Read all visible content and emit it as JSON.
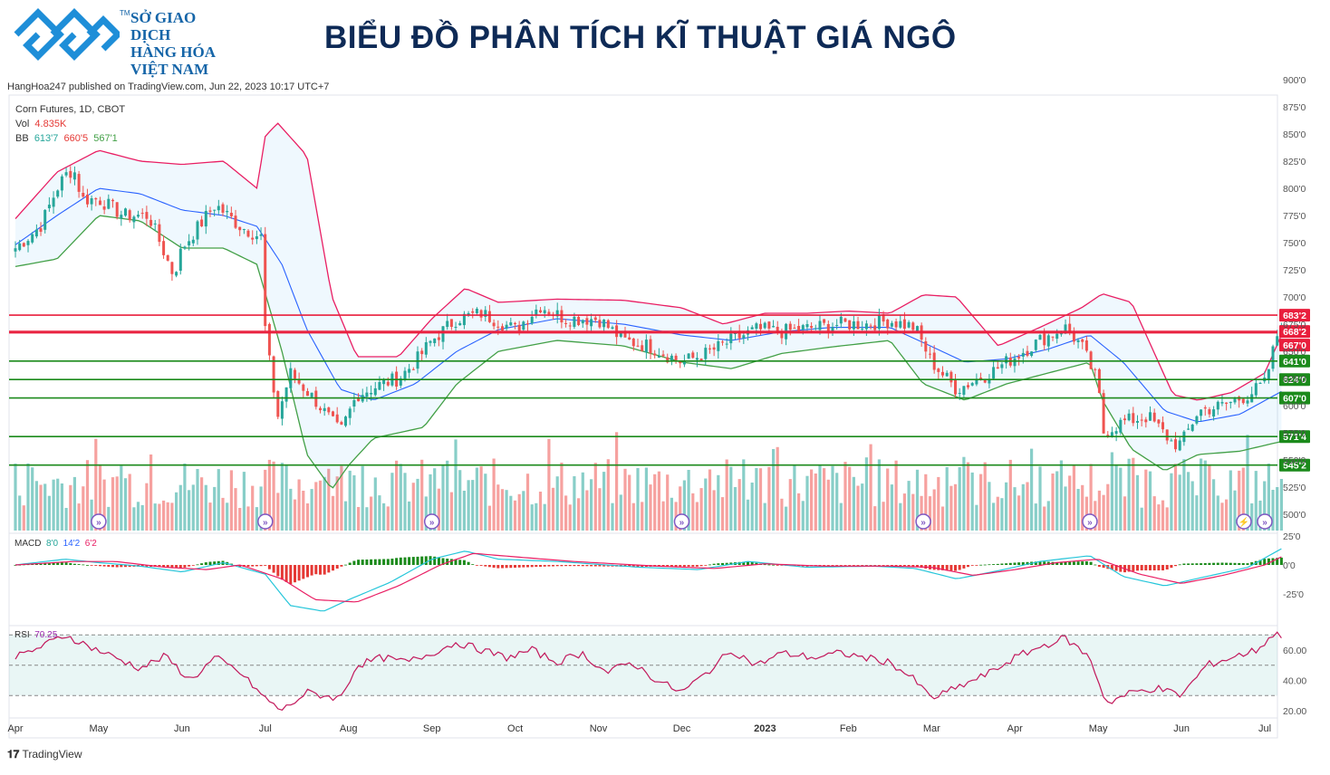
{
  "header": {
    "logo_tm": "TM",
    "logo_lines": [
      "SỞ GIAO DỊCH",
      "HÀNG HÓA",
      "VIỆT NAM"
    ],
    "title": "BIỂU ĐỒ PHÂN TÍCH KĨ THUẬT GIÁ NGÔ"
  },
  "published": "HangHoa247 published on TradingView.com, Jun 22, 2023 10:17 UTC+7",
  "legend": {
    "symbol": "Corn Futures, 1D, CBOT",
    "vol_label": "Vol",
    "vol_value": "4.835K",
    "bb_label": "BB",
    "bb_basis": "613'7",
    "bb_upper": "660'5",
    "bb_lower": "567'1"
  },
  "macd_legend": {
    "label": "MACD",
    "v1": "8'0",
    "v2": "14'2",
    "v3": "6'2"
  },
  "rsi_legend": {
    "label": "RSI",
    "value": "70.25"
  },
  "footer": {
    "brand": "TradingView"
  },
  "colors": {
    "up": "#26a69a",
    "down": "#ef5350",
    "bb_upper": "#e91e63",
    "bb_basis": "#2962ff",
    "bb_lower": "#43a047",
    "resistance": "#e91e3c",
    "support": "#1b8a1b"
  },
  "chart_data": {
    "type": "candlestick",
    "symbol": "Corn Futures, 1D, CBOT",
    "x_ticks": [
      "Apr",
      "May",
      "Jun",
      "Jul",
      "Aug",
      "Sep",
      "Oct",
      "Nov",
      "Dec",
      "2023",
      "Feb",
      "Mar",
      "Apr",
      "May",
      "Jun",
      "Jul"
    ],
    "y_ticks": [
      "900'0",
      "875'0",
      "850'0",
      "825'0",
      "800'0",
      "775'0",
      "750'0",
      "725'0",
      "700'0",
      "675'0",
      "650'0",
      "625'0",
      "600'0",
      "575'0",
      "550'0",
      "525'0",
      "500'0"
    ],
    "ylim": [
      500,
      900
    ],
    "price_close_path": [
      [
        0,
        745
      ],
      [
        0.3,
        765
      ],
      [
        0.5,
        800
      ],
      [
        0.6,
        812
      ],
      [
        0.7,
        818
      ],
      [
        0.8,
        790
      ],
      [
        1.0,
        790
      ],
      [
        1.3,
        775
      ],
      [
        1.6,
        775
      ],
      [
        1.9,
        720
      ],
      [
        2.0,
        745
      ],
      [
        2.4,
        785
      ],
      [
        2.7,
        765
      ],
      [
        2.95,
        755
      ],
      [
        3.0,
        670
      ],
      [
        3.05,
        640
      ],
      [
        3.15,
        590
      ],
      [
        3.3,
        630
      ],
      [
        3.6,
        605
      ],
      [
        3.9,
        575
      ],
      [
        4.1,
        610
      ],
      [
        4.4,
        620
      ],
      [
        4.6,
        625
      ],
      [
        4.8,
        640
      ],
      [
        5.0,
        660
      ],
      [
        5.3,
        680
      ],
      [
        5.6,
        685
      ],
      [
        6.0,
        670
      ],
      [
        6.3,
        692
      ],
      [
        6.6,
        680
      ],
      [
        7.0,
        680
      ],
      [
        7.3,
        660
      ],
      [
        7.6,
        655
      ],
      [
        8.0,
        640
      ],
      [
        8.3,
        648
      ],
      [
        8.6,
        660
      ],
      [
        8.9,
        670
      ],
      [
        9.2,
        668
      ],
      [
        9.6,
        672
      ],
      [
        9.9,
        675
      ],
      [
        10.2,
        675
      ],
      [
        10.5,
        678
      ],
      [
        10.8,
        672
      ],
      [
        11.0,
        640
      ],
      [
        11.3,
        615
      ],
      [
        11.7,
        630
      ],
      [
        12.0,
        645
      ],
      [
        12.3,
        660
      ],
      [
        12.6,
        672
      ],
      [
        12.8,
        655
      ],
      [
        13.0,
        620
      ],
      [
        13.05,
        575
      ],
      [
        13.3,
        585
      ],
      [
        13.6,
        590
      ],
      [
        13.9,
        565
      ],
      [
        14.0,
        565
      ],
      [
        14.2,
        595
      ],
      [
        14.5,
        600
      ],
      [
        14.8,
        610
      ],
      [
        15.0,
        620
      ],
      [
        15.2,
        680
      ]
    ],
    "bb_upper_path": [
      [
        0,
        772
      ],
      [
        0.5,
        815
      ],
      [
        1.0,
        835
      ],
      [
        1.5,
        825
      ],
      [
        2.0,
        822
      ],
      [
        2.5,
        825
      ],
      [
        2.9,
        800
      ],
      [
        3.0,
        848
      ],
      [
        3.15,
        860
      ],
      [
        3.5,
        830
      ],
      [
        3.8,
        700
      ],
      [
        4.1,
        645
      ],
      [
        4.6,
        645
      ],
      [
        5.0,
        680
      ],
      [
        5.4,
        708
      ],
      [
        5.8,
        695
      ],
      [
        6.5,
        698
      ],
      [
        7.3,
        697
      ],
      [
        8.0,
        690
      ],
      [
        8.5,
        675
      ],
      [
        9.0,
        685
      ],
      [
        9.5,
        685
      ],
      [
        10.0,
        687
      ],
      [
        10.5,
        685
      ],
      [
        10.9,
        702
      ],
      [
        11.3,
        700
      ],
      [
        11.8,
        655
      ],
      [
        12.3,
        672
      ],
      [
        12.8,
        690
      ],
      [
        13.05,
        703
      ],
      [
        13.4,
        695
      ],
      [
        13.9,
        610
      ],
      [
        14.2,
        605
      ],
      [
        14.6,
        612
      ],
      [
        15.0,
        630
      ],
      [
        15.2,
        665
      ]
    ],
    "bb_basis_path": [
      [
        0,
        748
      ],
      [
        0.5,
        775
      ],
      [
        1.0,
        800
      ],
      [
        1.5,
        795
      ],
      [
        2.0,
        780
      ],
      [
        2.5,
        775
      ],
      [
        2.9,
        765
      ],
      [
        3.2,
        730
      ],
      [
        3.5,
        670
      ],
      [
        3.9,
        615
      ],
      [
        4.3,
        605
      ],
      [
        4.8,
        620
      ],
      [
        5.3,
        650
      ],
      [
        5.8,
        670
      ],
      [
        6.5,
        680
      ],
      [
        7.3,
        675
      ],
      [
        8.0,
        665
      ],
      [
        8.6,
        660
      ],
      [
        9.2,
        668
      ],
      [
        9.8,
        672
      ],
      [
        10.5,
        672
      ],
      [
        10.9,
        658
      ],
      [
        11.4,
        640
      ],
      [
        11.9,
        643
      ],
      [
        12.4,
        652
      ],
      [
        12.9,
        665
      ],
      [
        13.3,
        640
      ],
      [
        13.8,
        595
      ],
      [
        14.2,
        585
      ],
      [
        14.7,
        592
      ],
      [
        15.2,
        613
      ]
    ],
    "bb_lower_path": [
      [
        0,
        728
      ],
      [
        0.5,
        735
      ],
      [
        1.0,
        775
      ],
      [
        1.5,
        770
      ],
      [
        2.0,
        745
      ],
      [
        2.5,
        745
      ],
      [
        2.9,
        730
      ],
      [
        3.2,
        650
      ],
      [
        3.5,
        555
      ],
      [
        3.8,
        523
      ],
      [
        4.0,
        545
      ],
      [
        4.3,
        570
      ],
      [
        4.9,
        580
      ],
      [
        5.3,
        620
      ],
      [
        5.8,
        650
      ],
      [
        6.5,
        660
      ],
      [
        7.3,
        655
      ],
      [
        8.0,
        640
      ],
      [
        8.6,
        634
      ],
      [
        9.2,
        648
      ],
      [
        9.8,
        654
      ],
      [
        10.5,
        660
      ],
      [
        10.9,
        620
      ],
      [
        11.4,
        605
      ],
      [
        11.9,
        620
      ],
      [
        12.4,
        630
      ],
      [
        12.9,
        640
      ],
      [
        13.05,
        605
      ],
      [
        13.4,
        560
      ],
      [
        13.8,
        540
      ],
      [
        14.2,
        555
      ],
      [
        14.7,
        558
      ],
      [
        15.2,
        567
      ]
    ],
    "horizontal_levels": [
      {
        "value": 683.25,
        "label": "683'2",
        "kind": "resistance"
      },
      {
        "value": 668.25,
        "label": "668'2",
        "kind": "resistance"
      },
      {
        "value": 667.0,
        "label": "667'0",
        "kind": "resistance"
      },
      {
        "value": 641.0,
        "label": "641'0",
        "kind": "support"
      },
      {
        "value": 624.0,
        "label": "624'0",
        "kind": "support"
      },
      {
        "value": 607.0,
        "label": "607'0",
        "kind": "support"
      },
      {
        "value": 571.5,
        "label": "571'4",
        "kind": "support"
      },
      {
        "value": 545.25,
        "label": "545'2",
        "kind": "support"
      }
    ],
    "macd": {
      "y_ticks": [
        "25'0",
        "0'0",
        "-25'0"
      ],
      "ylim": [
        -45,
        30
      ],
      "macd_path": [
        [
          0,
          0
        ],
        [
          0.6,
          5
        ],
        [
          1.0,
          2
        ],
        [
          1.5,
          -1
        ],
        [
          2.0,
          -6
        ],
        [
          2.5,
          2
        ],
        [
          3.0,
          -8
        ],
        [
          3.3,
          -35
        ],
        [
          3.7,
          -40
        ],
        [
          4.0,
          -30
        ],
        [
          4.5,
          -15
        ],
        [
          5.0,
          5
        ],
        [
          5.4,
          12
        ],
        [
          5.8,
          5
        ],
        [
          6.5,
          3
        ],
        [
          7.5,
          -2
        ],
        [
          8.2,
          -4
        ],
        [
          8.8,
          3
        ],
        [
          9.5,
          -2
        ],
        [
          10.3,
          -1
        ],
        [
          10.8,
          -3
        ],
        [
          11.3,
          -12
        ],
        [
          11.8,
          -5
        ],
        [
          12.3,
          3
        ],
        [
          12.9,
          8
        ],
        [
          13.3,
          -10
        ],
        [
          13.8,
          -18
        ],
        [
          14.3,
          -10
        ],
        [
          14.8,
          -2
        ],
        [
          15.2,
          14
        ]
      ],
      "signal_path": [
        [
          0,
          0
        ],
        [
          0.7,
          3
        ],
        [
          1.2,
          3
        ],
        [
          1.8,
          -2
        ],
        [
          2.3,
          -4
        ],
        [
          2.7,
          0
        ],
        [
          3.2,
          -12
        ],
        [
          3.6,
          -30
        ],
        [
          4.1,
          -32
        ],
        [
          4.6,
          -18
        ],
        [
          5.1,
          0
        ],
        [
          5.5,
          10
        ],
        [
          6.0,
          7
        ],
        [
          6.7,
          3
        ],
        [
          7.7,
          -1
        ],
        [
          8.4,
          -3
        ],
        [
          9.0,
          1
        ],
        [
          9.7,
          -1
        ],
        [
          10.5,
          -1
        ],
        [
          11.0,
          -2
        ],
        [
          11.5,
          -9
        ],
        [
          12.0,
          -4
        ],
        [
          12.5,
          2
        ],
        [
          13.0,
          5
        ],
        [
          13.5,
          -8
        ],
        [
          14.0,
          -16
        ],
        [
          14.5,
          -9
        ],
        [
          15.0,
          0
        ],
        [
          15.2,
          7
        ]
      ],
      "histogram_sign_path": [
        [
          0,
          1
        ],
        [
          1.0,
          1
        ],
        [
          1.6,
          -1
        ],
        [
          2.3,
          -1
        ],
        [
          2.5,
          1
        ],
        [
          2.9,
          1
        ],
        [
          3.0,
          -1
        ],
        [
          3.8,
          -1
        ],
        [
          3.9,
          1
        ],
        [
          5.6,
          1
        ],
        [
          5.7,
          -1
        ],
        [
          8.5,
          -1
        ],
        [
          8.6,
          1
        ],
        [
          9.4,
          1
        ],
        [
          9.5,
          -1
        ],
        [
          11.2,
          -1
        ],
        [
          11.3,
          1
        ],
        [
          12.9,
          1
        ],
        [
          13.0,
          -1
        ],
        [
          13.9,
          -1
        ],
        [
          14.0,
          1
        ],
        [
          15.2,
          1
        ]
      ]
    },
    "rsi": {
      "y_ticks": [
        "60.00",
        "40.00",
        "20.00"
      ],
      "ylim": [
        15,
        75
      ],
      "band": [
        30,
        70
      ],
      "midline": 50,
      "rsi_path": [
        [
          0,
          55
        ],
        [
          0.3,
          62
        ],
        [
          0.6,
          70
        ],
        [
          0.9,
          62
        ],
        [
          1.2,
          55
        ],
        [
          1.5,
          48
        ],
        [
          1.8,
          56
        ],
        [
          2.1,
          40
        ],
        [
          2.4,
          55
        ],
        [
          2.7,
          45
        ],
        [
          3.0,
          28
        ],
        [
          3.2,
          20
        ],
        [
          3.5,
          32
        ],
        [
          3.9,
          28
        ],
        [
          4.1,
          50
        ],
        [
          4.4,
          55
        ],
        [
          4.7,
          52
        ],
        [
          5.0,
          58
        ],
        [
          5.3,
          65
        ],
        [
          5.6,
          60
        ],
        [
          5.9,
          55
        ],
        [
          6.2,
          60
        ],
        [
          6.5,
          52
        ],
        [
          6.8,
          58
        ],
        [
          7.1,
          45
        ],
        [
          7.4,
          52
        ],
        [
          7.7,
          40
        ],
        [
          8.0,
          32
        ],
        [
          8.3,
          45
        ],
        [
          8.6,
          60
        ],
        [
          8.9,
          50
        ],
        [
          9.2,
          58
        ],
        [
          9.6,
          55
        ],
        [
          9.9,
          58
        ],
        [
          10.2,
          55
        ],
        [
          10.5,
          52
        ],
        [
          10.8,
          40
        ],
        [
          11.0,
          28
        ],
        [
          11.3,
          35
        ],
        [
          11.7,
          45
        ],
        [
          12.0,
          55
        ],
        [
          12.3,
          62
        ],
        [
          12.6,
          68
        ],
        [
          12.9,
          55
        ],
        [
          13.0,
          40
        ],
        [
          13.1,
          25
        ],
        [
          13.4,
          32
        ],
        [
          13.7,
          35
        ],
        [
          14.0,
          30
        ],
        [
          14.3,
          50
        ],
        [
          14.6,
          55
        ],
        [
          14.9,
          60
        ],
        [
          15.1,
          70
        ],
        [
          15.2,
          70
        ]
      ]
    },
    "volume": {
      "note_markers": 8
    }
  }
}
